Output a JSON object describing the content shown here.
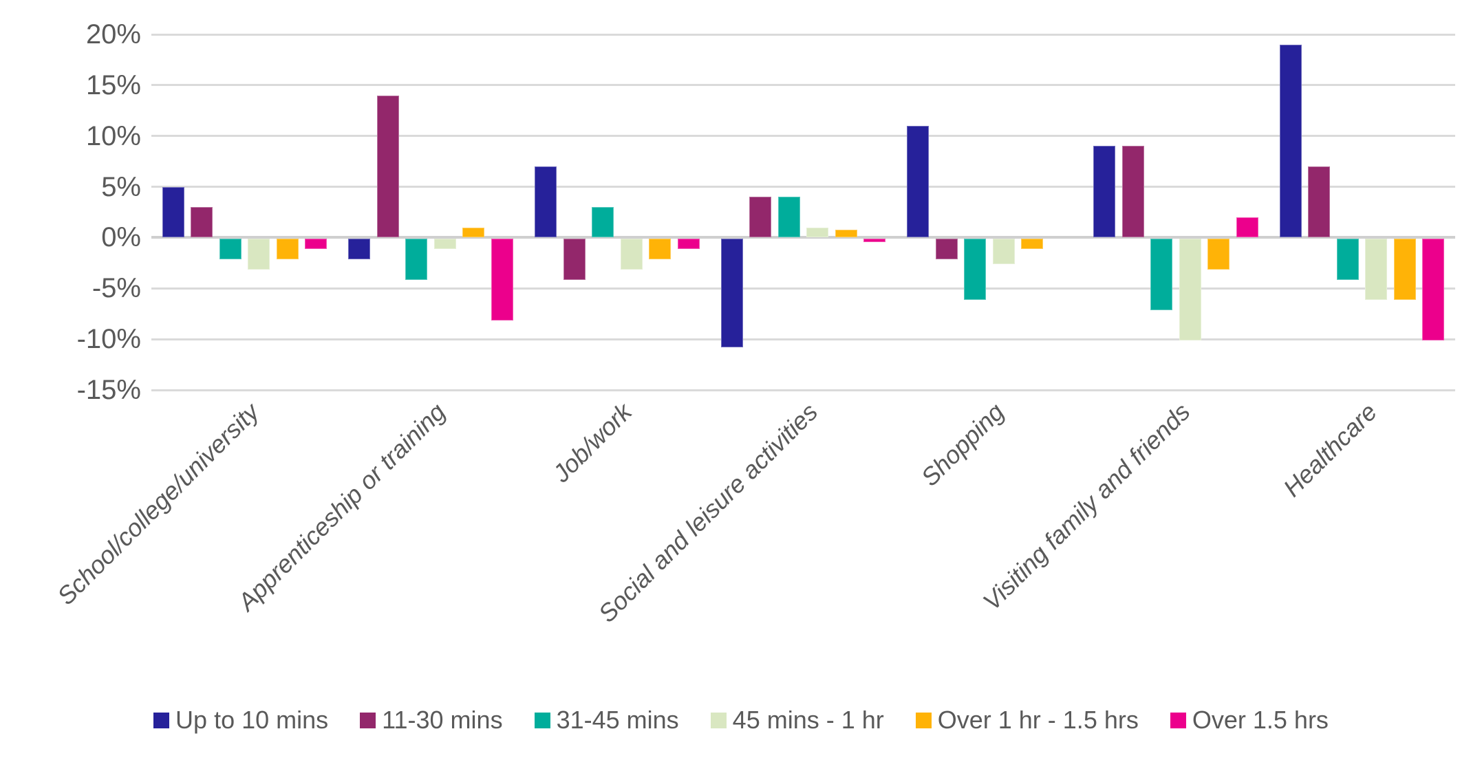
{
  "chart_data": {
    "type": "bar",
    "categories": [
      "School/college/university",
      "Apprenticeship or training",
      "Job/work",
      "Social and leisure activities",
      "Shopping",
      "Visiting family and friends",
      "Healthcare"
    ],
    "series": [
      {
        "name": "Up to 10 mins",
        "color": "#26219A",
        "values": [
          5,
          -2,
          7,
          -10.7,
          11,
          9,
          19
        ]
      },
      {
        "name": "11-30 mins",
        "color": "#93276B",
        "values": [
          3,
          14,
          -4,
          4,
          -2,
          9,
          7
        ]
      },
      {
        "name": "31-45 mins",
        "color": "#00AD9B",
        "values": [
          -2,
          -4,
          3,
          4,
          -6,
          -7,
          -4
        ]
      },
      {
        "name": "45 mins - 1 hr",
        "color": "#D9E7C1",
        "values": [
          -3,
          -1,
          -3,
          1,
          -2.5,
          -10,
          -6
        ]
      },
      {
        "name": "Over 1 hr - 1.5 hrs",
        "color": "#FFB307",
        "values": [
          -2,
          1,
          -2,
          0.8,
          -1,
          -3,
          -6
        ]
      },
      {
        "name": "Over 1.5 hrs",
        "color": "#EC008C",
        "values": [
          -1,
          -8,
          -1,
          -0.3,
          0,
          2,
          -10
        ]
      }
    ],
    "y_axis": {
      "min": -15,
      "max": 20,
      "step": 5,
      "tick_values": [
        20,
        15,
        10,
        5,
        0,
        -5,
        -10,
        -15
      ],
      "ticks": [
        "20%",
        "15%",
        "10%",
        "5%",
        "0%",
        "-5%",
        "-10%",
        "-15%"
      ]
    },
    "grid": true,
    "legend_position": "bottom",
    "text_color": "#595959",
    "gridline_color": "#DADADA",
    "zero_line_color": "#CFCFCF"
  }
}
